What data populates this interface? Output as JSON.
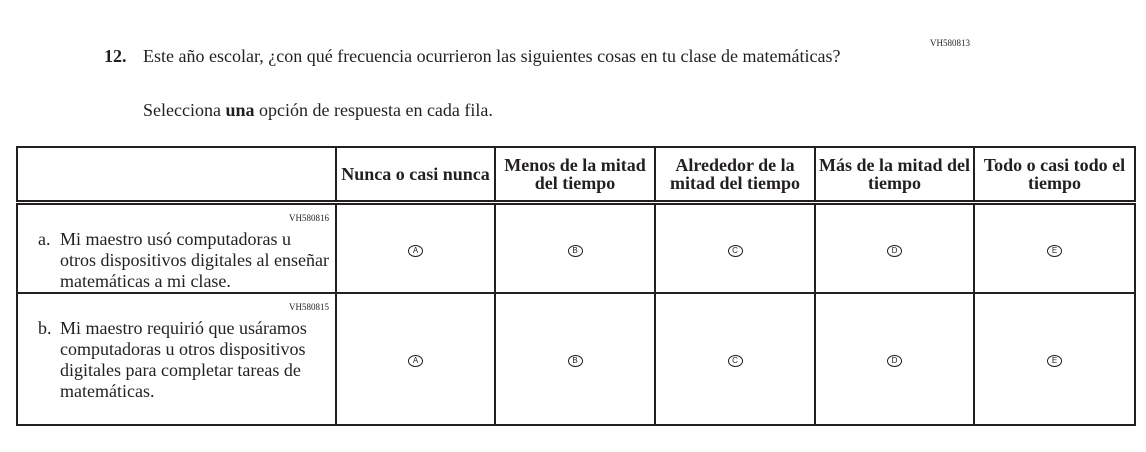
{
  "question": {
    "code": "VH580813",
    "number": "12.",
    "text": "Este año escolar, ¿con qué frecuencia ocurrieron las siguientes cosas en tu clase de matemáticas?",
    "instruction_pre": "Selecciona ",
    "instruction_bold": "una",
    "instruction_post": " opción de respuesta en cada fila."
  },
  "columns": [
    "Nunca o casi nunca",
    "Menos de la mitad del tiempo",
    "Alrededor de la mitad del tiempo",
    "Más de la mitad del tiempo",
    "Todo o casi todo el tiempo"
  ],
  "options": [
    "A",
    "B",
    "C",
    "D",
    "E"
  ],
  "rows": [
    {
      "code": "VH580816",
      "label": "a.",
      "text": "Mi maestro usó computadoras u otros dispositivos digitales al enseñar matemáticas a mi clase."
    },
    {
      "code": "VH580815",
      "label": "b.",
      "text": "Mi maestro requirió que usáramos computadoras u otros dispositivos digitales para completar tareas de matemáticas."
    }
  ]
}
